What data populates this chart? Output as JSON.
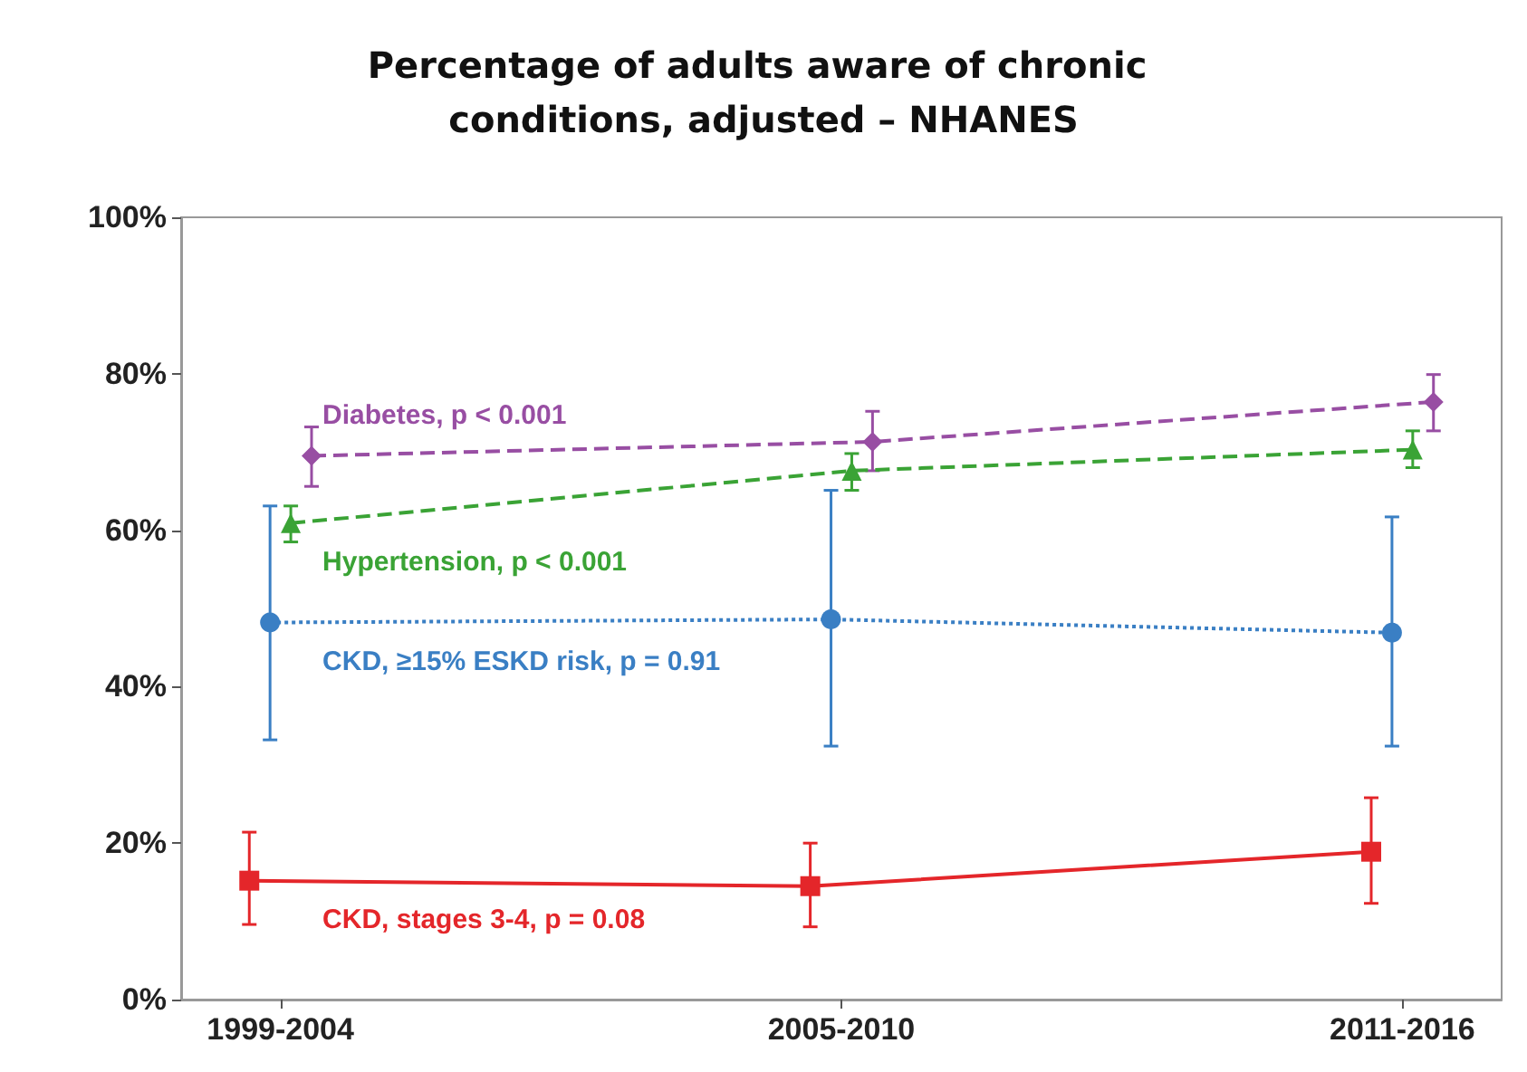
{
  "chart_data": {
    "type": "line",
    "title": "Percentage of adults aware of chronic conditions, adjusted – NHANES",
    "categories": [
      "1999-2004",
      "2005-2010",
      "2011-2016"
    ],
    "ylim": [
      0,
      100
    ],
    "yticks": [
      {
        "value": 0,
        "label": "0%"
      },
      {
        "value": 20,
        "label": "20%"
      },
      {
        "value": 40,
        "label": "40%"
      },
      {
        "value": 60,
        "label": "60%"
      },
      {
        "value": 80,
        "label": "80%"
      },
      {
        "value": 100,
        "label": "100%"
      }
    ],
    "grid": false,
    "legend": false,
    "series": [
      {
        "name": "Diabetes, p < 0.001",
        "color": "#984ea3",
        "marker": "diamond",
        "line_style": "dashed",
        "values": [
          69.5,
          71.3,
          76.4
        ],
        "errors": [
          [
            65.6,
            73.2
          ],
          [
            67.6,
            75.2
          ],
          [
            72.7,
            79.9
          ]
        ]
      },
      {
        "name": "Hypertension, p < 0.001",
        "color": "#3aa335",
        "marker": "triangle",
        "line_style": "dashed",
        "values": [
          60.9,
          67.6,
          70.3
        ],
        "errors": [
          [
            58.5,
            63.1
          ],
          [
            65.1,
            69.8
          ],
          [
            68,
            72.7
          ]
        ]
      },
      {
        "name": "CKD, ≥15% ESKD risk, p = 0.91",
        "color": "#3a7fc4",
        "marker": "circle",
        "line_style": "dotted",
        "values": [
          48.2,
          48.6,
          46.9
        ],
        "errors": [
          [
            33.2,
            63.1
          ],
          [
            32.4,
            65.1
          ],
          [
            32.4,
            61.7
          ]
        ]
      },
      {
        "name": "CKD, stages 3-4, p = 0.08",
        "color": "#e4262a",
        "marker": "square",
        "line_style": "solid",
        "values": [
          15.2,
          14.5,
          18.9
        ],
        "errors": [
          [
            9.6,
            21.4
          ],
          [
            9.3,
            20
          ],
          [
            12.3,
            25.8
          ]
        ]
      }
    ]
  }
}
